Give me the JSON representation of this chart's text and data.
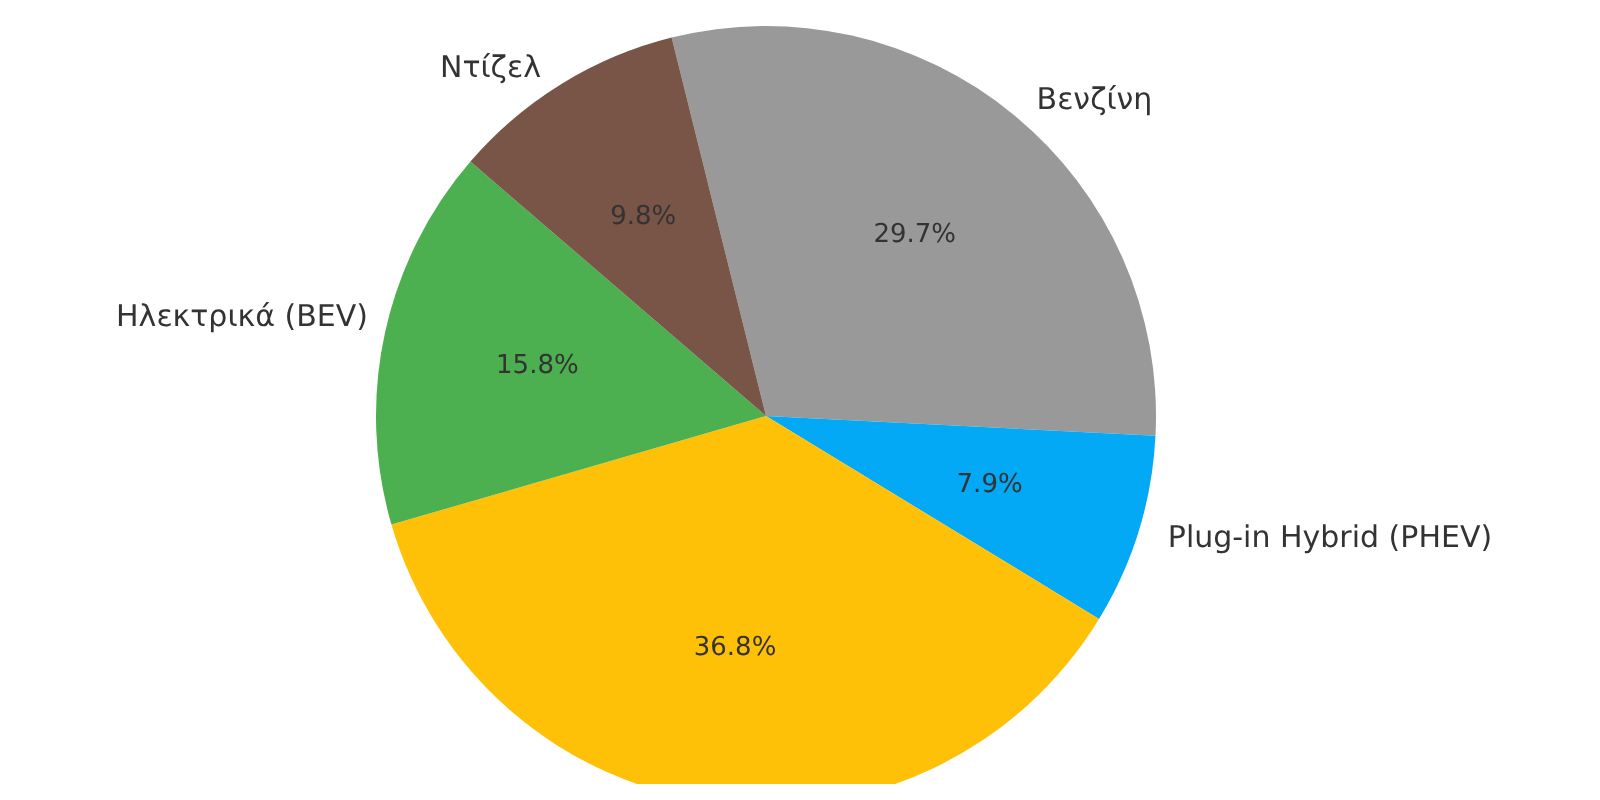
{
  "chart_data": {
    "type": "pie",
    "categories": [
      "Βενζίνη",
      "Plug-in Hybrid (PHEV)",
      null,
      "Ηλεκτρικά (BEV)",
      "Ντίζελ"
    ],
    "values": [
      29.7,
      7.9,
      36.8,
      15.8,
      9.8
    ],
    "value_labels": [
      "29.7%",
      "7.9%",
      "36.8%",
      "15.8%",
      "9.8%"
    ],
    "colors": [
      "#999999",
      "#03a9f4",
      "#ffc107",
      "#4caf50",
      "#795548"
    ],
    "legend": false
  }
}
